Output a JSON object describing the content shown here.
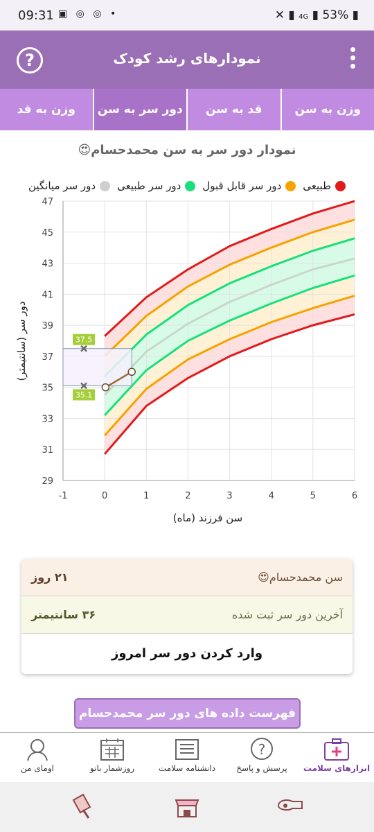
{
  "status_bar": {
    "time": "09:31",
    "battery": "53%",
    "network": "4G"
  },
  "app_bar": {
    "title": "نمودارهای رشد کودک",
    "help_glyph": "?"
  },
  "tabs": [
    {
      "label": "وزن به سن",
      "active": false
    },
    {
      "label": "قد به سن",
      "active": false
    },
    {
      "label": "دور سر به سن",
      "active": true
    },
    {
      "label": "وزن به قد",
      "active": false
    }
  ],
  "chart_title": "نمودار دور سر به سن محمدحسام😍",
  "legend": [
    {
      "label": "طبیعی",
      "color": "#e01b1b"
    },
    {
      "label": "دور سر قابل قبول",
      "color": "#f5a300"
    },
    {
      "label": "دور سر طبیعی",
      "color": "#19e07a"
    },
    {
      "label": "دور سر میانگین",
      "color": "#cfcfcf"
    }
  ],
  "chart_data": {
    "type": "line",
    "title": "نمودار دور سر به سن محمدحسام😍",
    "xlabel": "سن فرزند (ماه)",
    "ylabel": "دور سر (سانتیمتر)",
    "xlim": [
      -1,
      6
    ],
    "ylim": [
      29,
      47
    ],
    "x_ticks": [
      -1,
      0,
      1,
      2,
      3,
      4,
      5,
      6
    ],
    "y_ticks": [
      29,
      31,
      33,
      35,
      37,
      39,
      41,
      43,
      45,
      47
    ],
    "grid": true,
    "x": [
      0,
      1,
      2,
      3,
      4,
      5,
      6
    ],
    "curves": [
      {
        "color": "#e01b1b",
        "values": [
          30.7,
          33.8,
          35.6,
          37.0,
          38.1,
          39.0,
          39.7
        ]
      },
      {
        "color": "#f5a300",
        "values": [
          31.9,
          34.9,
          36.8,
          38.1,
          39.2,
          40.1,
          40.9
        ]
      },
      {
        "color": "#19e07a",
        "values": [
          33.2,
          36.1,
          38.0,
          39.3,
          40.4,
          41.4,
          42.2
        ]
      },
      {
        "color": "#c8d6cc",
        "values": [
          34.5,
          37.3,
          39.1,
          40.5,
          41.6,
          42.6,
          43.3
        ]
      },
      {
        "color": "#19e07a",
        "values": [
          35.7,
          38.4,
          40.3,
          41.7,
          42.8,
          43.8,
          44.6
        ]
      },
      {
        "color": "#f5a300",
        "values": [
          37.0,
          39.6,
          41.5,
          42.9,
          44.0,
          45.0,
          45.8
        ]
      },
      {
        "color": "#e01b1b",
        "values": [
          38.3,
          40.8,
          42.6,
          44.1,
          45.2,
          46.2,
          47.0
        ]
      }
    ],
    "child_points": {
      "x": [
        0.02,
        0.65
      ],
      "y": [
        35.0,
        36.0
      ]
    },
    "birth_range": {
      "x": -0.5,
      "low": 35.1,
      "high": 37.5,
      "low_label": "35.1",
      "high_label": "37.5"
    }
  },
  "info_card": {
    "age_label": "سن محمدحسام😍",
    "age_value": "۲۱ روز",
    "last_label": "آخرین دور سر ثبت شده",
    "last_value": "۳۶ سانتیمتر",
    "action": "وارد کردن دور سر امروز"
  },
  "list_button": "فهرست داده های دور سر محمدحسام😍",
  "bottom_nav": [
    {
      "label": "ابزارهای سلامت",
      "icon": "health-tools-icon",
      "active": true
    },
    {
      "label": "پرسش و پاسخ",
      "icon": "question-icon",
      "active": false
    },
    {
      "label": "دانشنامه سلامت",
      "icon": "encyclopedia-icon",
      "active": false
    },
    {
      "label": "روزشمار بانو",
      "icon": "calendar-icon",
      "active": false
    },
    {
      "label": "اومای من",
      "icon": "profile-icon",
      "active": false
    }
  ]
}
